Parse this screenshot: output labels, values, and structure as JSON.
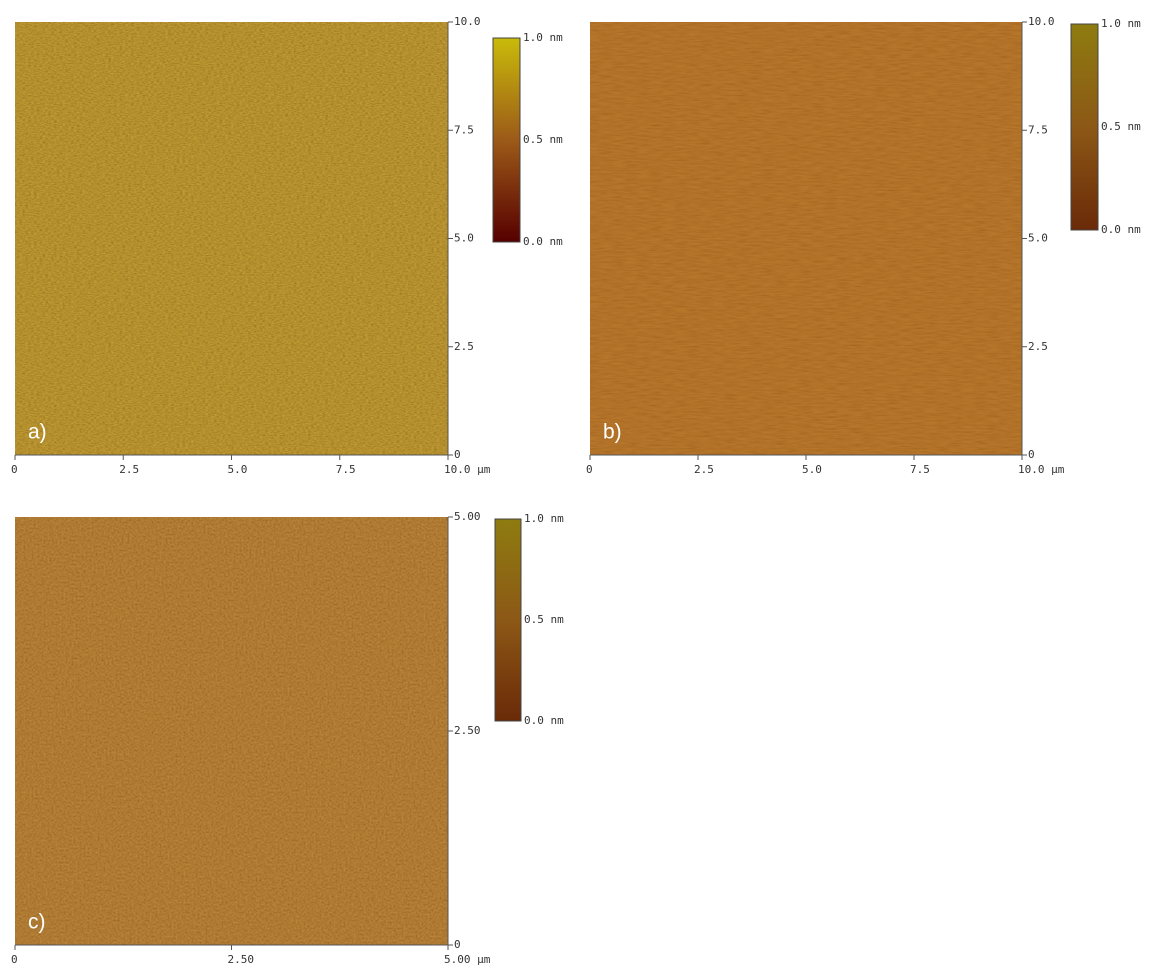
{
  "panels": [
    {
      "label": "a)",
      "yticks": [
        "10.0",
        "7.5",
        "5.0",
        "2.5",
        "0"
      ],
      "xticks": [
        "0",
        "2.5",
        "5.0",
        "7.5",
        "10.0 µm"
      ],
      "colorbar": [
        "1.0 nm",
        "0.5 nm",
        "0.0 nm"
      ]
    },
    {
      "label": "b)",
      "yticks": [
        "10.0",
        "7.5",
        "5.0",
        "2.5",
        "0"
      ],
      "xticks": [
        "0",
        "2.5",
        "5.0",
        "7.5",
        "10.0 µm"
      ],
      "colorbar": [
        "1.0 nm",
        "0.5 nm",
        "0.0 nm"
      ]
    },
    {
      "label": "c)",
      "yticks": [
        "5.00",
        "2.50",
        "0"
      ],
      "xticks": [
        "0",
        "2.50",
        "5.00 µm"
      ],
      "colorbar": [
        "1.0 nm",
        "0.5 nm",
        "0.0 nm"
      ]
    }
  ]
}
